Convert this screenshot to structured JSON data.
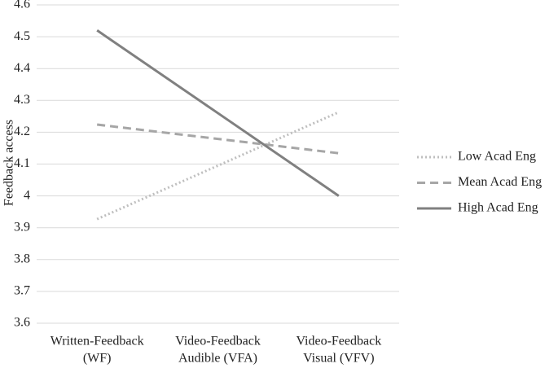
{
  "chart_data": {
    "type": "line",
    "y_label": "Feedback access",
    "categories": [
      [
        "Written-Feedback",
        "(WF)"
      ],
      [
        "Video-Feedback",
        "Audible (VFA)"
      ],
      [
        "Video-Feedback",
        "Visual (VFV)"
      ]
    ],
    "series": [
      {
        "name": "Low Acad Eng",
        "color": "#bfbfbf",
        "dash": "dotted",
        "values": [
          3.927,
          4.095,
          4.263
        ]
      },
      {
        "name": "Mean Acad Eng",
        "color": "#a6a6a6",
        "dash": "dashed",
        "values": [
          4.224,
          4.179,
          4.134
        ]
      },
      {
        "name": "High Acad Eng",
        "color": "#808080",
        "dash": "solid",
        "values": [
          4.52,
          4.26,
          4.0
        ]
      }
    ],
    "ylim": [
      3.6,
      4.6
    ],
    "yticks": [
      3.6,
      3.7,
      3.8,
      3.9,
      4,
      4.1,
      4.2,
      4.3,
      4.4,
      4.5,
      4.6
    ],
    "grid": true,
    "legend": "right"
  }
}
